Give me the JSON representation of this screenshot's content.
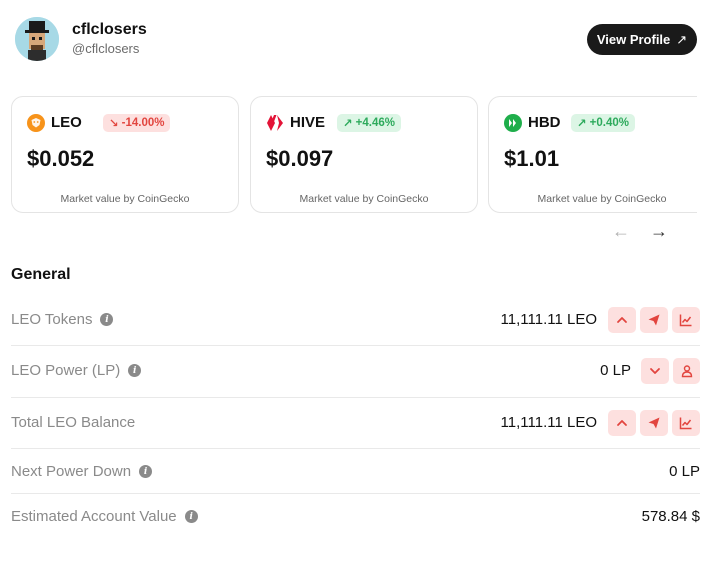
{
  "profile": {
    "name": "cflclosers",
    "handle": "@cflclosers",
    "view_profile_label": "View Profile",
    "view_profile_icon": "↗"
  },
  "cards": [
    {
      "symbol": "LEO",
      "change": "-14.00%",
      "change_arrow": "↘",
      "direction": "down",
      "price": "$0.052",
      "source": "Market value by CoinGecko",
      "icon_color": "#f7931a"
    },
    {
      "symbol": "HIVE",
      "change": "+4.46%",
      "change_arrow": "↗",
      "direction": "up",
      "price": "$0.097",
      "source": "Market value by CoinGecko",
      "icon_color": "#e31337"
    },
    {
      "symbol": "HBD",
      "change": "+0.40%",
      "change_arrow": "↗",
      "direction": "up",
      "price": "$1.01",
      "source": "Market value by CoinGecko",
      "icon_color": "#1fae4b"
    }
  ],
  "carousel": {
    "prev_icon": "←",
    "next_icon": "→"
  },
  "general": {
    "title": "General",
    "rows": [
      {
        "label": "LEO Tokens",
        "value": "11,111.11 LEO",
        "actions": [
          "chevron-up-icon",
          "send-icon",
          "chart-icon"
        ]
      },
      {
        "label": "LEO Power (LP)",
        "value": "0 LP",
        "actions": [
          "chevron-down-icon",
          "user-icon"
        ]
      },
      {
        "label": "Total LEO Balance",
        "value": "11,111.11 LEO",
        "actions": [
          "chevron-up-icon",
          "send-icon",
          "chart-icon"
        ]
      },
      {
        "label": "Next Power Down",
        "value": "0 LP",
        "actions": []
      },
      {
        "label": "Estimated Account Value",
        "value": "578.84 $",
        "actions": []
      }
    ]
  },
  "colors": {
    "accent": "#e2453f",
    "accent_bg": "#fde0df",
    "positive": "#2daa5c",
    "positive_bg": "#dcf5e5",
    "button_dark": "#1a1a1a"
  }
}
